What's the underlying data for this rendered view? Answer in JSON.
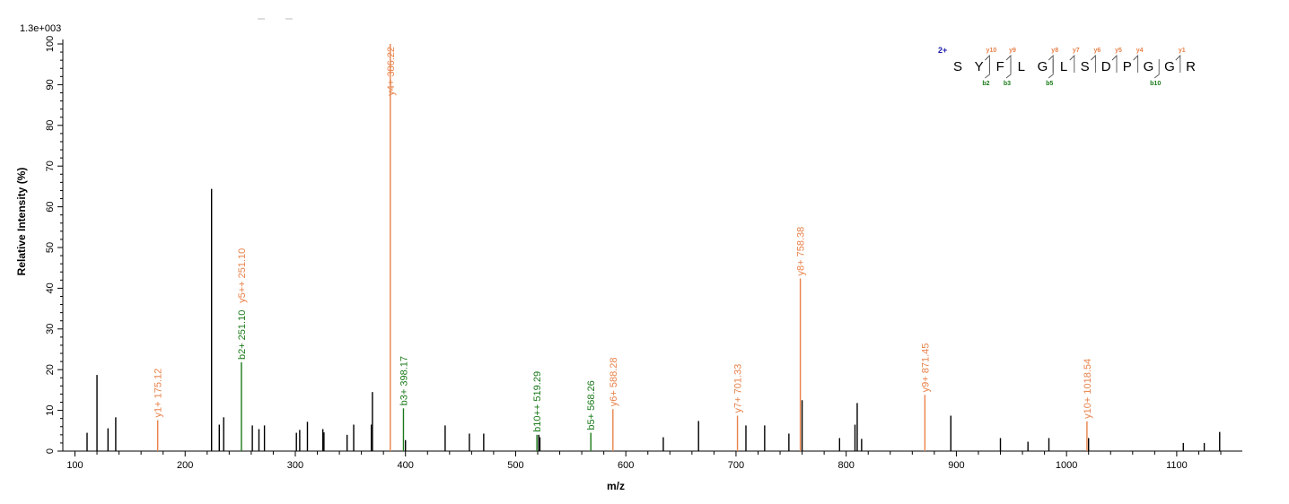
{
  "chart_data": {
    "type": "bar",
    "scale_label": "1.3e+003",
    "xlabel": "m/z",
    "ylabel": "Relative   Intensity (%)",
    "xlim": [
      95,
      1165
    ],
    "ylim": [
      0,
      101
    ],
    "x_ticks": [
      100,
      200,
      300,
      400,
      500,
      600,
      700,
      800,
      900,
      1000,
      1100
    ],
    "y_ticks": [
      0,
      10,
      20,
      30,
      40,
      50,
      60,
      70,
      80,
      90,
      100
    ],
    "colors": {
      "y_ion": "#e8824a",
      "b_ion": "#1a7a1a",
      "unassigned": "#000000",
      "charge": "#1a1aa8"
    },
    "unassigned_peaks": [
      {
        "mz": 111,
        "intensity": 4.5
      },
      {
        "mz": 120,
        "intensity": 18.7
      },
      {
        "mz": 130,
        "intensity": 5.6
      },
      {
        "mz": 137,
        "intensity": 8.3
      },
      {
        "mz": 224,
        "intensity": 64.4
      },
      {
        "mz": 231,
        "intensity": 6.5
      },
      {
        "mz": 235,
        "intensity": 8.3
      },
      {
        "mz": 261,
        "intensity": 6.3
      },
      {
        "mz": 267,
        "intensity": 5.4
      },
      {
        "mz": 272,
        "intensity": 6.3
      },
      {
        "mz": 301,
        "intensity": 4.5
      },
      {
        "mz": 304,
        "intensity": 5.2
      },
      {
        "mz": 311,
        "intensity": 7.2
      },
      {
        "mz": 325,
        "intensity": 5.4
      },
      {
        "mz": 326,
        "intensity": 4.6
      },
      {
        "mz": 347,
        "intensity": 4.0
      },
      {
        "mz": 353,
        "intensity": 6.5
      },
      {
        "mz": 369,
        "intensity": 6.5
      },
      {
        "mz": 370,
        "intensity": 14.5
      },
      {
        "mz": 400,
        "intensity": 2.7
      },
      {
        "mz": 436,
        "intensity": 6.3
      },
      {
        "mz": 458,
        "intensity": 4.3
      },
      {
        "mz": 471,
        "intensity": 4.3
      },
      {
        "mz": 521,
        "intensity": 4.0
      },
      {
        "mz": 522,
        "intensity": 3.4
      },
      {
        "mz": 634,
        "intensity": 3.4
      },
      {
        "mz": 666,
        "intensity": 7.4
      },
      {
        "mz": 709,
        "intensity": 6.3
      },
      {
        "mz": 726,
        "intensity": 6.3
      },
      {
        "mz": 748,
        "intensity": 4.3
      },
      {
        "mz": 760,
        "intensity": 12.5
      },
      {
        "mz": 794,
        "intensity": 3.2
      },
      {
        "mz": 808,
        "intensity": 6.5
      },
      {
        "mz": 810,
        "intensity": 11.8
      },
      {
        "mz": 814,
        "intensity": 3.0
      },
      {
        "mz": 895,
        "intensity": 8.7
      },
      {
        "mz": 940,
        "intensity": 3.2
      },
      {
        "mz": 965,
        "intensity": 2.3
      },
      {
        "mz": 984,
        "intensity": 3.2
      },
      {
        "mz": 1020,
        "intensity": 3.2
      },
      {
        "mz": 1106,
        "intensity": 2.0
      },
      {
        "mz": 1125,
        "intensity": 2.0
      },
      {
        "mz": 1139,
        "intensity": 4.7
      }
    ],
    "annotated_peaks": [
      {
        "label": "y1+ 175.12",
        "mz": 175.12,
        "intensity": 7.6,
        "ion": "y"
      },
      {
        "label": "b2+ 251.10",
        "mz": 251.1,
        "intensity": 21.8,
        "ion": "b"
      },
      {
        "label": "y5++ 251.10",
        "mz": 251.1,
        "intensity": 35.7,
        "ion": "y",
        "label_only": true
      },
      {
        "label": "y4+ 386.22",
        "mz": 386.22,
        "intensity": 100,
        "ion": "y"
      },
      {
        "label": "b3+ 398.17",
        "mz": 398.17,
        "intensity": 10.5,
        "ion": "b"
      },
      {
        "label": "b10++ 519.29",
        "mz": 519.29,
        "intensity": 4.0,
        "ion": "b"
      },
      {
        "label": "b5+ 568.26",
        "mz": 568.26,
        "intensity": 4.5,
        "ion": "b"
      },
      {
        "label": "y6+ 588.28",
        "mz": 588.28,
        "intensity": 10.3,
        "ion": "y"
      },
      {
        "label": "y7+ 701.33",
        "mz": 701.33,
        "intensity": 8.7,
        "ion": "y"
      },
      {
        "label": "y8+ 758.38",
        "mz": 758.38,
        "intensity": 42.4,
        "ion": "y"
      },
      {
        "label": "y9+ 871.45",
        "mz": 871.45,
        "intensity": 13.8,
        "ion": "y"
      },
      {
        "label": "y10+ 1018.54",
        "mz": 1018.54,
        "intensity": 7.3,
        "ion": "y"
      }
    ]
  },
  "sequence": {
    "charge": "2+",
    "residues": [
      "S",
      "Y",
      "F",
      "L",
      "G",
      "L",
      "S",
      "D",
      "P",
      "G",
      "G",
      "R"
    ],
    "y_marks": [
      {
        "after": 2,
        "label": "y10"
      },
      {
        "after": 3,
        "label": "y9"
      },
      {
        "after": 5,
        "label": "y8"
      },
      {
        "after": 6,
        "label": "y7"
      },
      {
        "after": 7,
        "label": "y6"
      },
      {
        "after": 8,
        "label": "y5"
      },
      {
        "after": 9,
        "label": "y4"
      },
      {
        "after": 11,
        "label": "y1"
      }
    ],
    "b_marks": [
      {
        "after": 2,
        "label": "b2"
      },
      {
        "after": 3,
        "label": "b3"
      },
      {
        "after": 5,
        "label": "b5"
      },
      {
        "after": 10,
        "label": "b10"
      }
    ]
  }
}
